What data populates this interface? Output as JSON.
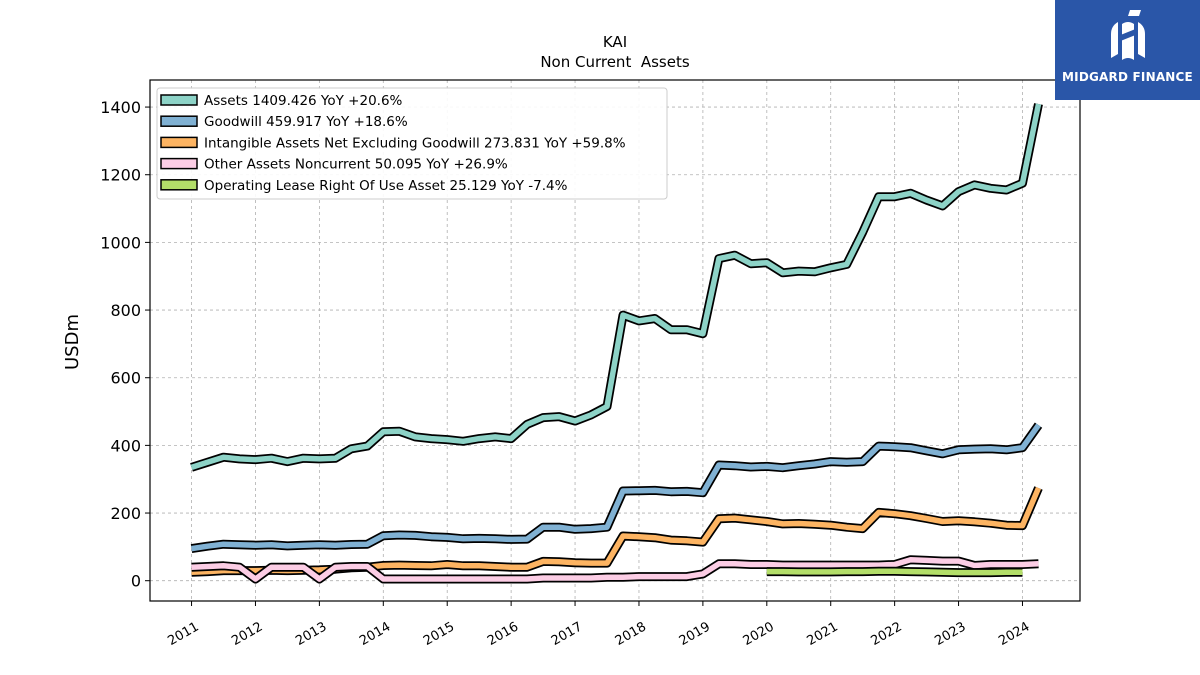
{
  "brand": {
    "name": "MIDGARD FINANCE",
    "color": "#2a56a8"
  },
  "chart_data": {
    "type": "line",
    "title": "KAI",
    "subtitle": "Non Current  Assets",
    "ylabel": "USDm",
    "xlabel": "",
    "ylim": [
      -60,
      1480
    ],
    "xlim": [
      2010.35,
      2024.9
    ],
    "yticks": [
      0,
      200,
      400,
      600,
      800,
      1000,
      1200,
      1400
    ],
    "xticks": [
      "2011",
      "2012",
      "2013",
      "2014",
      "2015",
      "2016",
      "2017",
      "2018",
      "2019",
      "2020",
      "2021",
      "2022",
      "2023",
      "2024"
    ],
    "grid": true,
    "legend_position": "top-left",
    "series": [
      {
        "name": "Assets",
        "legend": "Assets  1409.426 YoY +20.6%",
        "color": "#8dd3c7",
        "x": [
          2011.0,
          2011.25,
          2011.5,
          2011.75,
          2012.0,
          2012.25,
          2012.5,
          2012.75,
          2013.0,
          2013.25,
          2013.5,
          2013.75,
          2014.0,
          2014.25,
          2014.5,
          2014.75,
          2015.0,
          2015.25,
          2015.5,
          2015.75,
          2016.0,
          2016.25,
          2016.5,
          2016.75,
          2017.0,
          2017.25,
          2017.5,
          2017.75,
          2018.0,
          2018.25,
          2018.5,
          2018.75,
          2019.0,
          2019.25,
          2019.5,
          2019.75,
          2020.0,
          2020.25,
          2020.5,
          2020.75,
          2021.0,
          2021.25,
          2021.5,
          2021.75,
          2022.0,
          2022.25,
          2022.5,
          2022.75,
          2023.0,
          2023.25,
          2023.5,
          2023.75,
          2024.0,
          2024.25
        ],
        "values": [
          335,
          350,
          365,
          360,
          358,
          362,
          352,
          362,
          360,
          362,
          390,
          398,
          440,
          442,
          425,
          420,
          417,
          412,
          420,
          425,
          420,
          462,
          482,
          485,
          472,
          490,
          515,
          785,
          768,
          775,
          742,
          742,
          730,
          952,
          962,
          937,
          940,
          910,
          915,
          913,
          925,
          935,
          1030,
          1135,
          1135,
          1145,
          1125,
          1108,
          1150,
          1170,
          1160,
          1155,
          1175,
          1409
        ]
      },
      {
        "name": "Goodwill",
        "legend": "Goodwill  459.917 YoY +18.6%",
        "color": "#80b1d3",
        "x": [
          2011.0,
          2011.25,
          2011.5,
          2011.75,
          2012.0,
          2012.25,
          2012.5,
          2012.75,
          2013.0,
          2013.25,
          2013.5,
          2013.75,
          2014.0,
          2014.25,
          2014.5,
          2014.75,
          2015.0,
          2015.25,
          2015.5,
          2015.75,
          2016.0,
          2016.25,
          2016.5,
          2016.75,
          2017.0,
          2017.25,
          2017.5,
          2017.75,
          2018.0,
          2018.25,
          2018.5,
          2018.75,
          2019.0,
          2019.25,
          2019.5,
          2019.75,
          2020.0,
          2020.25,
          2020.5,
          2020.75,
          2021.0,
          2021.25,
          2021.5,
          2021.75,
          2022.0,
          2022.25,
          2022.5,
          2022.75,
          2023.0,
          2023.25,
          2023.5,
          2023.75,
          2024.0,
          2024.25
        ],
        "values": [
          95,
          102,
          108,
          106,
          105,
          106,
          103,
          105,
          106,
          105,
          107,
          108,
          133,
          135,
          134,
          130,
          128,
          124,
          125,
          124,
          122,
          123,
          158,
          158,
          152,
          154,
          158,
          265,
          266,
          267,
          263,
          264,
          260,
          342,
          340,
          336,
          338,
          334,
          340,
          345,
          352,
          350,
          352,
          398,
          396,
          393,
          384,
          375,
          387,
          389,
          390,
          387,
          393,
          460
        ]
      },
      {
        "name": "Intangible Assets Net Excluding Goodwill",
        "legend": "Intangible Assets Net Excluding Goodwill  273.831 YoY +59.8%",
        "color": "#fdb462",
        "x": [
          2011.0,
          2011.25,
          2011.5,
          2011.75,
          2012.0,
          2012.25,
          2012.5,
          2012.75,
          2013.0,
          2013.25,
          2013.5,
          2013.75,
          2014.0,
          2014.25,
          2014.5,
          2014.75,
          2015.0,
          2015.25,
          2015.5,
          2015.75,
          2016.0,
          2016.25,
          2016.5,
          2016.75,
          2017.0,
          2017.25,
          2017.5,
          2017.75,
          2018.0,
          2018.25,
          2018.5,
          2018.75,
          2019.0,
          2019.25,
          2019.5,
          2019.75,
          2020.0,
          2020.25,
          2020.5,
          2020.75,
          2021.0,
          2021.25,
          2021.5,
          2021.75,
          2022.0,
          2022.25,
          2022.5,
          2022.75,
          2023.0,
          2023.25,
          2023.5,
          2023.75,
          2024.0,
          2024.25
        ],
        "values": [
          25,
          27,
          30,
          30,
          30,
          31,
          30,
          31,
          32,
          34,
          38,
          40,
          45,
          46,
          45,
          44,
          48,
          44,
          44,
          42,
          40,
          40,
          57,
          56,
          53,
          52,
          52,
          132,
          130,
          127,
          120,
          118,
          114,
          183,
          185,
          180,
          175,
          168,
          169,
          167,
          164,
          158,
          154,
          202,
          198,
          192,
          184,
          175,
          177,
          174,
          170,
          164,
          163,
          274
        ]
      },
      {
        "name": "Other Assets Noncurrent",
        "legend": "Other Assets Noncurrent  50.095 YoY +26.9%",
        "color": "#fccde5",
        "x": [
          2011.0,
          2011.25,
          2011.5,
          2011.75,
          2012.0,
          2012.25,
          2012.5,
          2012.75,
          2013.0,
          2013.25,
          2013.5,
          2013.75,
          2014.0,
          2014.25,
          2014.5,
          2014.75,
          2015.0,
          2015.25,
          2015.5,
          2015.75,
          2016.0,
          2016.25,
          2016.5,
          2016.75,
          2017.0,
          2017.25,
          2017.5,
          2017.75,
          2018.0,
          2018.25,
          2018.5,
          2018.75,
          2019.0,
          2019.25,
          2019.5,
          2019.75,
          2020.0,
          2020.25,
          2020.5,
          2020.75,
          2021.0,
          2021.25,
          2021.5,
          2021.75,
          2022.0,
          2022.25,
          2022.5,
          2022.75,
          2023.0,
          2023.25,
          2023.5,
          2023.75,
          2024.0,
          2024.25
        ],
        "values": [
          40,
          42,
          44,
          40,
          5,
          40,
          40,
          40,
          5,
          40,
          42,
          42,
          5,
          5,
          5,
          5,
          5,
          5,
          5,
          5,
          5,
          5,
          8,
          8,
          8,
          8,
          10,
          10,
          12,
          12,
          12,
          12,
          20,
          50,
          50,
          48,
          48,
          46,
          46,
          46,
          46,
          46,
          46,
          46,
          48,
          62,
          60,
          58,
          58,
          45,
          48,
          48,
          48,
          50
        ]
      },
      {
        "name": "Operating Lease Right Of Use Asset",
        "legend": "Operating Lease Right Of Use Asset  25.129 YoY -7.4%",
        "color": "#b3de69",
        "x": [
          2020.0,
          2020.25,
          2020.5,
          2020.75,
          2021.0,
          2021.25,
          2021.5,
          2021.75,
          2022.0,
          2022.25,
          2022.5,
          2022.75,
          2023.0,
          2023.25,
          2023.5,
          2023.75,
          2024.0
        ],
        "values": [
          27,
          27,
          26,
          26,
          26,
          27,
          27,
          28,
          28,
          27,
          26,
          25,
          24,
          24,
          24,
          25,
          25
        ]
      }
    ]
  }
}
